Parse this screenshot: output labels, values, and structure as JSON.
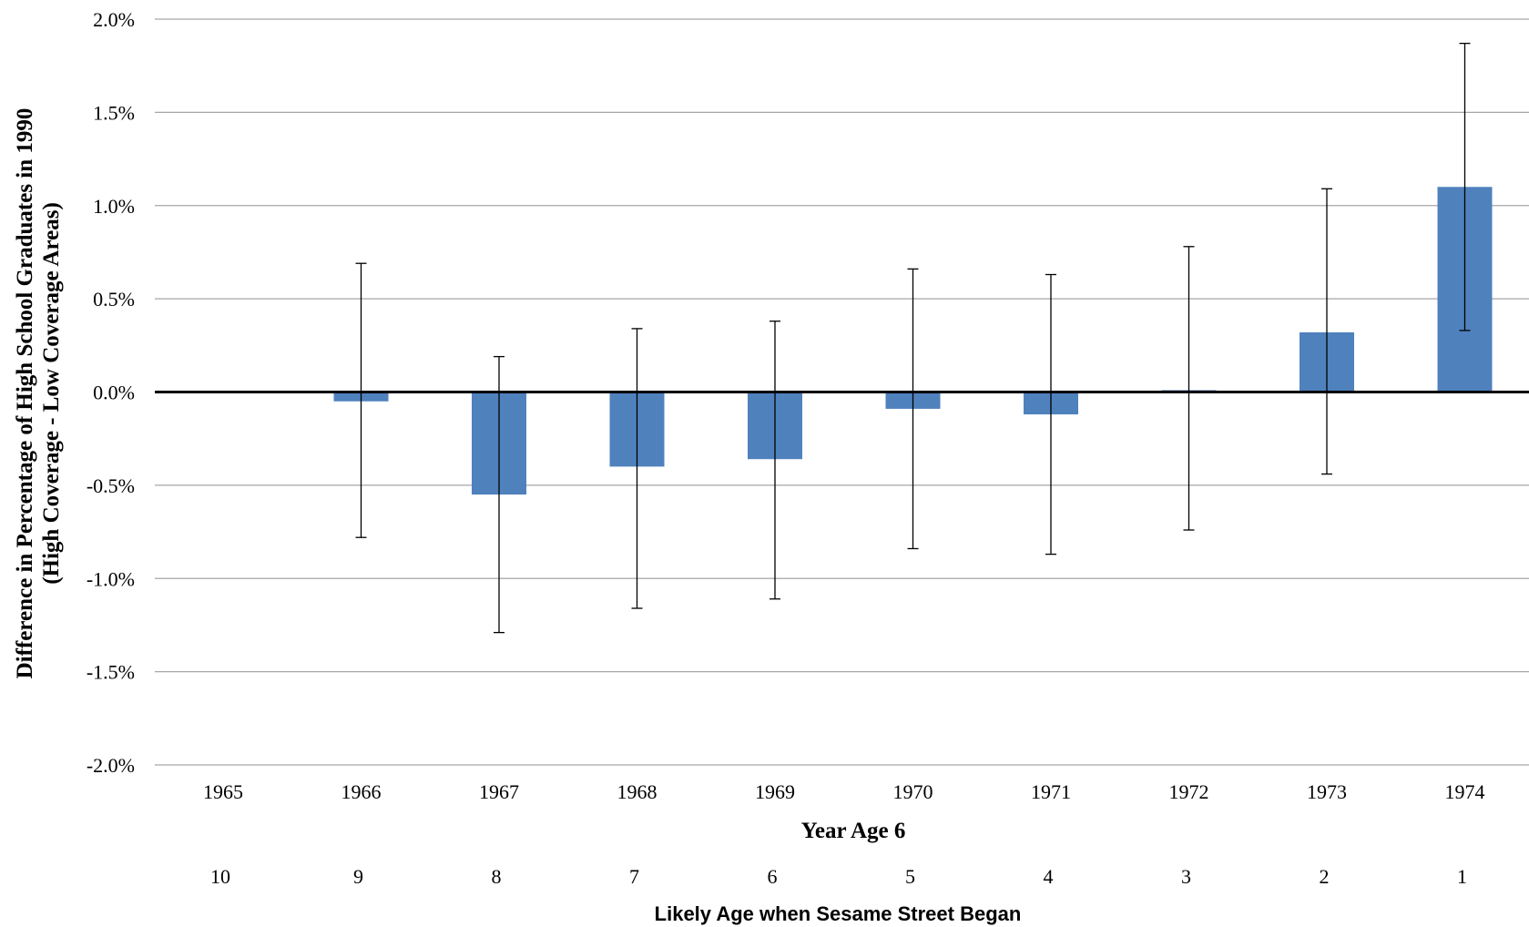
{
  "chart_data": {
    "type": "bar",
    "categories": [
      "1965",
      "1966",
      "1967",
      "1968",
      "1969",
      "1970",
      "1971",
      "1972",
      "1973",
      "1974"
    ],
    "secondary_categories": [
      "10",
      "9",
      "8",
      "7",
      "6",
      "5",
      "4",
      "3",
      "2",
      "1"
    ],
    "values": [
      0.0,
      -0.05,
      -0.55,
      -0.4,
      -0.36,
      -0.09,
      -0.12,
      0.01,
      0.32,
      1.1
    ],
    "error_high": [
      null,
      0.69,
      0.19,
      0.34,
      0.38,
      0.66,
      0.63,
      0.78,
      1.09,
      1.87
    ],
    "error_low": [
      null,
      -0.78,
      -1.29,
      -1.16,
      -1.11,
      -0.84,
      -0.87,
      -0.74,
      -0.44,
      0.33
    ],
    "ylim": [
      -2.0,
      2.0
    ],
    "yticks": [
      "2.0%",
      "1.5%",
      "1.0%",
      "0.5%",
      "0.0%",
      "-0.5%",
      "-1.0%",
      "-1.5%",
      "-2.0%"
    ],
    "ytick_values": [
      2.0,
      1.5,
      1.0,
      0.5,
      0.0,
      -0.5,
      -1.0,
      -1.5,
      -2.0
    ],
    "ylabel_line1": "Difference in Percentage of High School Graduates in 1990",
    "ylabel_line2": "(High Coverage - Low Coverage Areas)",
    "xlabel": "Year Age 6",
    "secondary_xlabel": "Likely Age when Sesame Street Began",
    "grid": true,
    "bar_color": "#4f81bd"
  }
}
